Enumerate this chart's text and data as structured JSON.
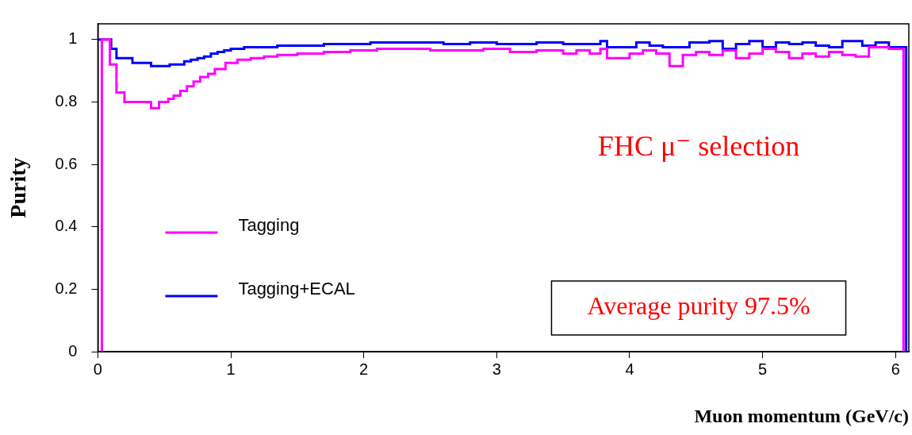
{
  "chart_data": {
    "type": "step",
    "xlabel": "Muon momentum (GeV/c)",
    "ylabel": "Purity",
    "xlim": [
      0,
      6.1
    ],
    "xticks": [
      0,
      1,
      2,
      3,
      4,
      5,
      6
    ],
    "ylim": [
      0,
      1.05
    ],
    "yticks": [
      0,
      0.2,
      0.4,
      0.6,
      0.8,
      1
    ],
    "grid": false,
    "legend": "left",
    "annotations": [
      "FHC μ⁻ selection",
      "Average purity 97.5%"
    ],
    "series": [
      {
        "name": "Tagging",
        "color": "#ff00ff",
        "x": [
          0.03,
          0.03,
          0.09,
          0.14,
          0.2,
          0.4,
          0.46,
          0.53,
          0.57,
          0.62,
          0.67,
          0.72,
          0.77,
          0.83,
          0.88,
          0.96,
          1.05,
          1.15,
          1.25,
          1.35,
          1.5,
          1.7,
          1.9,
          2.1,
          2.5,
          2.9,
          3.1,
          3.3,
          3.5,
          3.6,
          3.7,
          3.78,
          3.83,
          4.0,
          4.1,
          4.2,
          4.3,
          4.4,
          4.5,
          4.6,
          4.7,
          4.8,
          4.9,
          5.0,
          5.1,
          5.2,
          5.3,
          5.4,
          5.5,
          5.6,
          5.7,
          5.8,
          5.95,
          6.06,
          6.06
        ],
        "values": [
          0,
          1.0,
          0.92,
          0.83,
          0.8,
          0.78,
          0.8,
          0.81,
          0.82,
          0.835,
          0.85,
          0.865,
          0.88,
          0.89,
          0.905,
          0.925,
          0.935,
          0.94,
          0.945,
          0.95,
          0.955,
          0.96,
          0.965,
          0.97,
          0.965,
          0.97,
          0.96,
          0.965,
          0.955,
          0.965,
          0.955,
          0.97,
          0.94,
          0.955,
          0.965,
          0.955,
          0.915,
          0.95,
          0.96,
          0.95,
          0.965,
          0.94,
          0.955,
          0.97,
          0.96,
          0.94,
          0.955,
          0.945,
          0.96,
          0.95,
          0.945,
          0.975,
          0.97,
          0.97,
          0
        ]
      },
      {
        "name": "Tagging+ECAL",
        "color": "#0000ff",
        "x": [
          0,
          0.1,
          0.14,
          0.26,
          0.4,
          0.54,
          0.65,
          0.7,
          0.75,
          0.8,
          0.85,
          0.9,
          0.95,
          1.0,
          1.1,
          1.35,
          1.7,
          2.05,
          2.6,
          2.8,
          3.0,
          3.3,
          3.5,
          3.78,
          3.83,
          4.05,
          4.15,
          4.25,
          4.45,
          4.6,
          4.7,
          4.8,
          4.9,
          5.0,
          5.1,
          5.2,
          5.3,
          5.4,
          5.5,
          5.6,
          5.75,
          5.85,
          5.95,
          6.08,
          6.08
        ],
        "values": [
          1.0,
          0.97,
          0.94,
          0.925,
          0.915,
          0.92,
          0.93,
          0.935,
          0.94,
          0.945,
          0.955,
          0.96,
          0.965,
          0.97,
          0.975,
          0.98,
          0.985,
          0.99,
          0.985,
          0.99,
          0.985,
          0.99,
          0.985,
          0.995,
          0.975,
          0.99,
          0.98,
          0.975,
          0.99,
          0.995,
          0.97,
          0.985,
          0.995,
          0.975,
          0.99,
          0.985,
          0.99,
          0.98,
          0.975,
          0.995,
          0.98,
          0.99,
          0.975,
          0.975,
          0
        ]
      }
    ]
  }
}
